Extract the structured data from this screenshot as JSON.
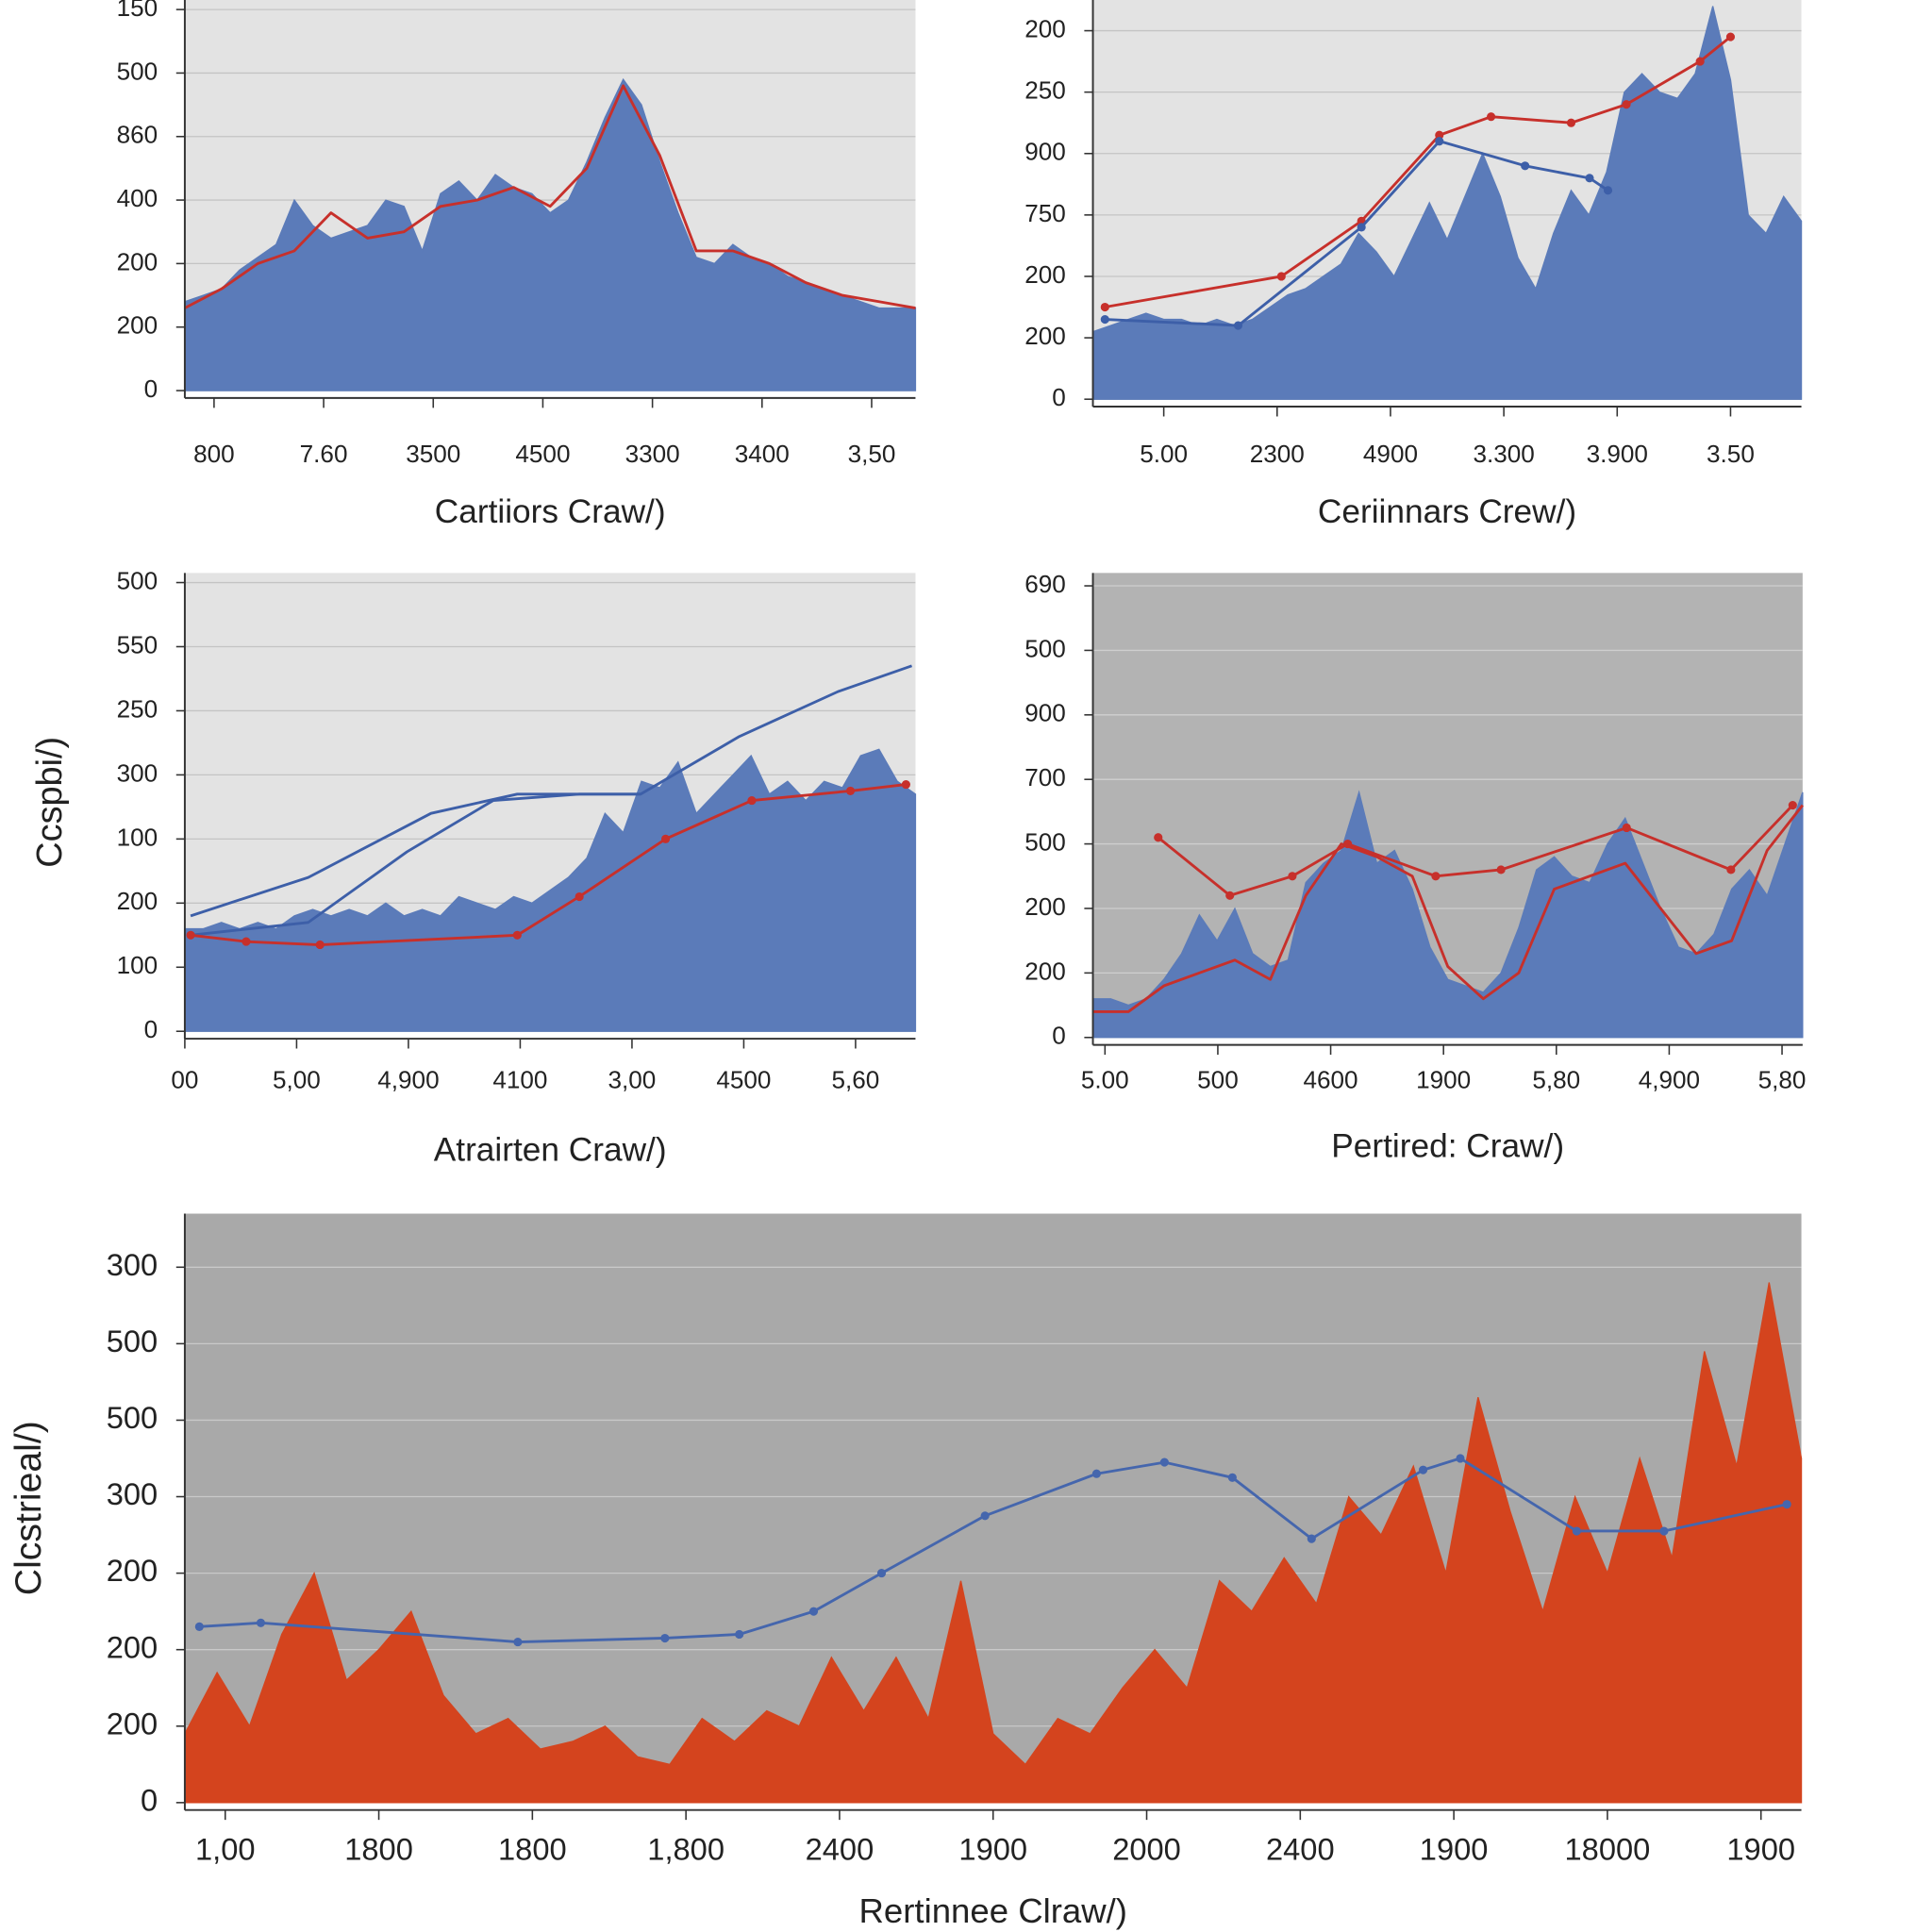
{
  "chart_data": [
    {
      "type": "area",
      "xlabel": "Cartiiors Craw/)",
      "xlim": [
        0,
        100
      ],
      "ylim": [
        0,
        6.15
      ],
      "grid": true,
      "yticks": [
        0,
        {
          "value": 1,
          "label": "200"
        },
        {
          "value": 2,
          "label": "200"
        },
        {
          "value": 3,
          "label": "400"
        },
        {
          "value": 4,
          "label": "860"
        },
        {
          "value": 5,
          "label": "500"
        },
        {
          "value": 6,
          "label": "150"
        }
      ],
      "xticks": [
        {
          "value": 4,
          "label": "800"
        },
        {
          "value": 19,
          "label": "7.60"
        },
        {
          "value": 34,
          "label": "3500"
        },
        {
          "value": 49,
          "label": "4500"
        },
        {
          "value": 64,
          "label": "3300"
        },
        {
          "value": 79,
          "label": "3400"
        },
        {
          "value": 94,
          "label": "3,50"
        }
      ],
      "series": [
        {
          "mark": "area",
          "color": "#5b7bb9",
          "x": [
            0,
            2.5,
            5,
            7.5,
            10,
            12.5,
            15,
            17.5,
            20,
            22.5,
            25,
            27.5,
            30,
            32.5,
            35,
            37.5,
            40,
            42.5,
            45,
            47.5,
            50,
            52.5,
            55,
            57.5,
            60,
            62.5,
            65,
            67.5,
            70,
            72.5,
            75,
            77.5,
            80,
            82.5,
            85,
            87.5,
            90,
            92.5,
            95,
            97.5,
            100
          ],
          "values": [
            1.4,
            1.5,
            1.6,
            1.9,
            2.1,
            2.3,
            3.0,
            2.6,
            2.4,
            2.5,
            2.6,
            3.0,
            2.9,
            2.2,
            3.1,
            3.3,
            3.0,
            3.4,
            3.2,
            3.1,
            2.8,
            3.0,
            3.6,
            4.3,
            4.9,
            4.5,
            3.6,
            2.8,
            2.1,
            2.0,
            2.3,
            2.1,
            2.0,
            1.8,
            1.7,
            1.6,
            1.5,
            1.4,
            1.3,
            1.3,
            1.3
          ]
        },
        {
          "mark": "line",
          "color": "#c7302b",
          "markers": false,
          "x": [
            0,
            5,
            10,
            15,
            20,
            25,
            30,
            35,
            40,
            45,
            50,
            55,
            60,
            65,
            70,
            75,
            80,
            85,
            90,
            95,
            100
          ],
          "values": [
            1.3,
            1.6,
            2.0,
            2.2,
            2.8,
            2.4,
            2.5,
            2.9,
            3.0,
            3.2,
            2.9,
            3.5,
            4.8,
            3.7,
            2.2,
            2.2,
            2.0,
            1.7,
            1.5,
            1.4,
            1.3
          ]
        }
      ]
    },
    {
      "type": "area",
      "xlabel": "Ceriinnars Crew/)",
      "xlim": [
        0,
        100
      ],
      "ylim": [
        0,
        6.5
      ],
      "grid": true,
      "yticks": [
        0,
        {
          "value": 1,
          "label": "200"
        },
        {
          "value": 2,
          "label": "200"
        },
        {
          "value": 3,
          "label": "750"
        },
        {
          "value": 4,
          "label": "900"
        },
        {
          "value": 5,
          "label": "250"
        },
        {
          "value": 6,
          "label": "200"
        }
      ],
      "xticks": [
        {
          "value": 10,
          "label": "5.00"
        },
        {
          "value": 26,
          "label": "2300"
        },
        {
          "value": 42,
          "label": "4900"
        },
        {
          "value": 58,
          "label": "3.300"
        },
        {
          "value": 74,
          "label": "3.900"
        },
        {
          "value": 90,
          "label": "3.50"
        }
      ],
      "series": [
        {
          "mark": "area",
          "color": "#5b7bb9",
          "x": [
            0,
            2.5,
            5,
            7.5,
            10,
            12.5,
            15,
            17.5,
            20,
            22.5,
            25,
            27.5,
            30,
            32.5,
            35,
            37.5,
            40,
            42.5,
            45,
            47.5,
            50,
            52.5,
            55,
            57.5,
            60,
            62.5,
            65,
            67.5,
            70,
            72.5,
            75,
            77.5,
            80,
            82.5,
            85,
            87.5,
            90,
            92.5,
            95,
            97.5,
            100
          ],
          "values": [
            1.1,
            1.2,
            1.3,
            1.4,
            1.3,
            1.3,
            1.2,
            1.3,
            1.2,
            1.3,
            1.5,
            1.7,
            1.8,
            2.0,
            2.2,
            2.7,
            2.4,
            2.0,
            2.6,
            3.2,
            2.6,
            3.3,
            4.0,
            3.3,
            2.3,
            1.8,
            2.7,
            3.4,
            3.0,
            3.7,
            5.0,
            5.3,
            5.0,
            4.9,
            5.3,
            6.4,
            5.2,
            3.0,
            2.7,
            3.3,
            2.9
          ]
        },
        {
          "mark": "line",
          "color": "#c7302b",
          "markers": true,
          "x": [
            1.7,
            26.6,
            37.9,
            48.9,
            56.2,
            67.5,
            75.3,
            85.7,
            90
          ],
          "values": [
            1.5,
            2.0,
            2.9,
            4.3,
            4.6,
            4.5,
            4.8,
            5.5,
            5.9
          ]
        },
        {
          "mark": "line",
          "color": "#3d5fa8",
          "markers": true,
          "x": [
            1.7,
            20.5,
            37.9,
            48.9,
            61,
            70.1,
            72.7
          ],
          "values": [
            1.3,
            1.2,
            2.8,
            4.2,
            3.8,
            3.6,
            3.4
          ]
        }
      ]
    },
    {
      "type": "area",
      "xlabel": "Atrairten Craw/)",
      "ylabel": "Ccspbi/)",
      "xlim": [
        0,
        100
      ],
      "ylim": [
        0,
        7.15
      ],
      "grid": true,
      "yticks": [
        0,
        {
          "value": 1,
          "label": "100"
        },
        {
          "value": 2,
          "label": "200"
        },
        {
          "value": 3,
          "label": "100"
        },
        {
          "value": 4,
          "label": "300"
        },
        {
          "value": 5,
          "label": "250"
        },
        {
          "value": 6,
          "label": "550"
        },
        {
          "value": 7,
          "label": "500"
        }
      ],
      "xticks": [
        {
          "value": 0,
          "label": "00"
        },
        {
          "value": 15.3,
          "label": "5,00"
        },
        {
          "value": 30.6,
          "label": "4,900"
        },
        {
          "value": 45.9,
          "label": "4100"
        },
        {
          "value": 61.2,
          "label": "3,00"
        },
        {
          "value": 76.5,
          "label": "4500"
        },
        {
          "value": 91.8,
          "label": "5,60"
        }
      ],
      "series": [
        {
          "mark": "area",
          "color": "#5b7bb9",
          "x": [
            0,
            2.5,
            5,
            7.5,
            10,
            12.5,
            15,
            17.5,
            20,
            22.5,
            25,
            27.5,
            30,
            32.5,
            35,
            37.5,
            40,
            42.5,
            45,
            47.5,
            50,
            52.5,
            55,
            57.5,
            60,
            62.5,
            65,
            67.5,
            70,
            72.5,
            75,
            77.5,
            80,
            82.5,
            85,
            87.5,
            90,
            92.5,
            95,
            97.5,
            100
          ],
          "values": [
            1.6,
            1.6,
            1.7,
            1.6,
            1.7,
            1.6,
            1.8,
            1.9,
            1.8,
            1.9,
            1.8,
            2.0,
            1.8,
            1.9,
            1.8,
            2.1,
            2.0,
            1.9,
            2.1,
            2.0,
            2.2,
            2.4,
            2.7,
            3.4,
            3.1,
            3.9,
            3.8,
            4.2,
            3.4,
            3.7,
            4.0,
            4.3,
            3.7,
            3.9,
            3.6,
            3.9,
            3.8,
            4.3,
            4.4,
            3.9,
            3.7
          ]
        },
        {
          "mark": "line",
          "color": "#3d5fa8",
          "markers": false,
          "x": [
            0.8,
            16.9,
            33.7,
            45.5,
            62.4,
            75.9,
            89.4,
            99.5
          ],
          "values": [
            1.8,
            2.4,
            3.4,
            3.7,
            3.7,
            4.6,
            5.3,
            5.7
          ]
        },
        {
          "mark": "line",
          "color": "#3d5fa8",
          "markers": false,
          "x": [
            0.8,
            16.9,
            30.4,
            42.2,
            54,
            62.4
          ],
          "values": [
            1.5,
            1.7,
            2.8,
            3.6,
            3.7,
            3.7
          ]
        },
        {
          "mark": "line",
          "color": "#c7302b",
          "markers": true,
          "x": [
            0.8,
            8.4,
            18.5,
            45.5,
            54,
            65.8,
            77.6,
            91.1,
            98.7
          ],
          "values": [
            1.5,
            1.4,
            1.35,
            1.5,
            2.1,
            3.0,
            3.6,
            3.75,
            3.85
          ]
        }
      ]
    },
    {
      "type": "area",
      "xlabel": "Pertired: Craw/)",
      "xlim": [
        0,
        100
      ],
      "ylim": [
        0,
        7.2
      ],
      "grid": true,
      "yticks": [
        0,
        {
          "value": 1,
          "label": "200"
        },
        {
          "value": 2,
          "label": "200"
        },
        {
          "value": 3,
          "label": "500"
        },
        {
          "value": 4,
          "label": "700"
        },
        {
          "value": 5,
          "label": "900"
        },
        {
          "value": 6,
          "label": "500"
        },
        {
          "value": 7,
          "label": "690"
        }
      ],
      "xticks": [
        {
          "value": 1.7,
          "label": "5.00"
        },
        {
          "value": 17.6,
          "label": "500"
        },
        {
          "value": 33.5,
          "label": "4600"
        },
        {
          "value": 49.4,
          "label": "1900"
        },
        {
          "value": 65.3,
          "label": "5,80"
        },
        {
          "value": 81.2,
          "label": "4,900"
        },
        {
          "value": 97.1,
          "label": "5,80"
        }
      ],
      "series": [
        {
          "mark": "area",
          "color": "#5b7bb9",
          "x": [
            0,
            2.5,
            5,
            7.5,
            10,
            12.5,
            15,
            17.5,
            20,
            22.5,
            25,
            27.5,
            30,
            32.5,
            35,
            37.5,
            40,
            42.5,
            45,
            47.5,
            50,
            52.5,
            55,
            57.5,
            60,
            62.5,
            65,
            67.5,
            70,
            72.5,
            75,
            77.5,
            80,
            82.5,
            85,
            87.5,
            90,
            92.5,
            95,
            97.5,
            100
          ],
          "values": [
            0.6,
            0.6,
            0.5,
            0.6,
            0.9,
            1.3,
            1.9,
            1.5,
            2.0,
            1.3,
            1.1,
            1.2,
            2.4,
            2.7,
            2.9,
            3.8,
            2.7,
            2.9,
            2.3,
            1.4,
            0.9,
            0.8,
            0.7,
            1.0,
            1.7,
            2.6,
            2.8,
            2.5,
            2.4,
            3.0,
            3.4,
            2.7,
            2.0,
            1.4,
            1.3,
            1.6,
            2.3,
            2.6,
            2.2,
            3.0,
            3.8
          ]
        },
        {
          "mark": "line",
          "color": "#c7302b",
          "markers": false,
          "x": [
            0,
            5,
            10,
            15,
            20,
            25,
            30,
            35,
            40,
            45,
            50,
            55,
            60,
            65,
            70,
            75,
            80,
            85,
            90,
            95,
            100
          ],
          "values": [
            0.4,
            0.4,
            0.8,
            1.0,
            1.2,
            0.9,
            2.2,
            3.0,
            2.8,
            2.5,
            1.1,
            0.6,
            1.0,
            2.3,
            2.5,
            2.7,
            2.0,
            1.3,
            1.5,
            2.9,
            3.6
          ]
        },
        {
          "mark": "line",
          "color": "#c7302b",
          "markers": true,
          "x": [
            9.2,
            19.3,
            28.1,
            35.9,
            48.3,
            57.5,
            75.2,
            89.9,
            98.6
          ],
          "values": [
            3.1,
            2.2,
            2.5,
            3.0,
            2.5,
            2.6,
            3.25,
            2.6,
            3.6
          ]
        }
      ]
    },
    {
      "type": "area",
      "xlabel": "Rertinnee Clraw/)",
      "ylabel": "Clcstrieal/)",
      "xlim": [
        0,
        100
      ],
      "ylim": [
        0,
        7.7
      ],
      "grid": true,
      "yticks": [
        0,
        {
          "value": 1,
          "label": "200"
        },
        {
          "value": 2,
          "label": "200"
        },
        {
          "value": 3,
          "label": "200"
        },
        {
          "value": 4,
          "label": "300"
        },
        {
          "value": 5,
          "label": "500"
        },
        {
          "value": 6,
          "label": "500"
        },
        {
          "value": 7,
          "label": "300"
        }
      ],
      "xticks": [
        {
          "value": 2.5,
          "label": "1,00"
        },
        {
          "value": 12,
          "label": "1800"
        },
        {
          "value": 21.5,
          "label": "1800"
        },
        {
          "value": 31,
          "label": "1,800"
        },
        {
          "value": 40.5,
          "label": "2400"
        },
        {
          "value": 50,
          "label": "1900"
        },
        {
          "value": 59.5,
          "label": "2000"
        },
        {
          "value": 69,
          "label": "2400"
        },
        {
          "value": 78.5,
          "label": "1900"
        },
        {
          "value": 88,
          "label": "18000"
        },
        {
          "value": 97.5,
          "label": "1900"
        }
      ],
      "series": [
        {
          "mark": "area",
          "color": "#d4441e",
          "x": [
            0,
            2,
            4,
            6,
            8,
            10,
            12,
            14,
            16,
            18,
            20,
            22,
            24,
            26,
            28,
            30,
            32,
            34,
            36,
            38,
            40,
            42,
            44,
            46,
            48,
            50,
            52,
            54,
            56,
            58,
            60,
            62,
            64,
            66,
            68,
            70,
            72,
            74,
            76,
            78,
            80,
            82,
            84,
            86,
            88,
            90,
            92,
            94,
            96,
            98,
            100
          ],
          "values": [
            0.9,
            1.7,
            1.0,
            2.2,
            3.0,
            1.6,
            2.0,
            2.5,
            1.4,
            0.9,
            1.1,
            0.7,
            0.8,
            1.0,
            0.6,
            0.5,
            1.1,
            0.8,
            1.2,
            1.0,
            1.9,
            1.2,
            1.9,
            1.1,
            2.9,
            0.9,
            0.5,
            1.1,
            0.9,
            1.5,
            2.0,
            1.5,
            2.9,
            2.5,
            3.2,
            2.6,
            4.0,
            3.5,
            4.4,
            3.0,
            5.3,
            3.8,
            2.5,
            4.0,
            3.0,
            4.5,
            3.2,
            5.9,
            4.4,
            6.8,
            4.5
          ]
        },
        {
          "mark": "line",
          "color": "#4566ad",
          "markers": true,
          "x": [
            0.9,
            4.7,
            20.6,
            29.7,
            34.3,
            38.9,
            43.1,
            49.5,
            56.4,
            60.6,
            64.8,
            69.7,
            76.6,
            78.9,
            86.1,
            91.5,
            99.1
          ],
          "values": [
            2.3,
            2.35,
            2.1,
            2.15,
            2.2,
            2.5,
            3.0,
            3.75,
            4.3,
            4.45,
            4.25,
            3.45,
            4.35,
            4.5,
            3.55,
            3.55,
            3.9
          ]
        }
      ]
    }
  ]
}
